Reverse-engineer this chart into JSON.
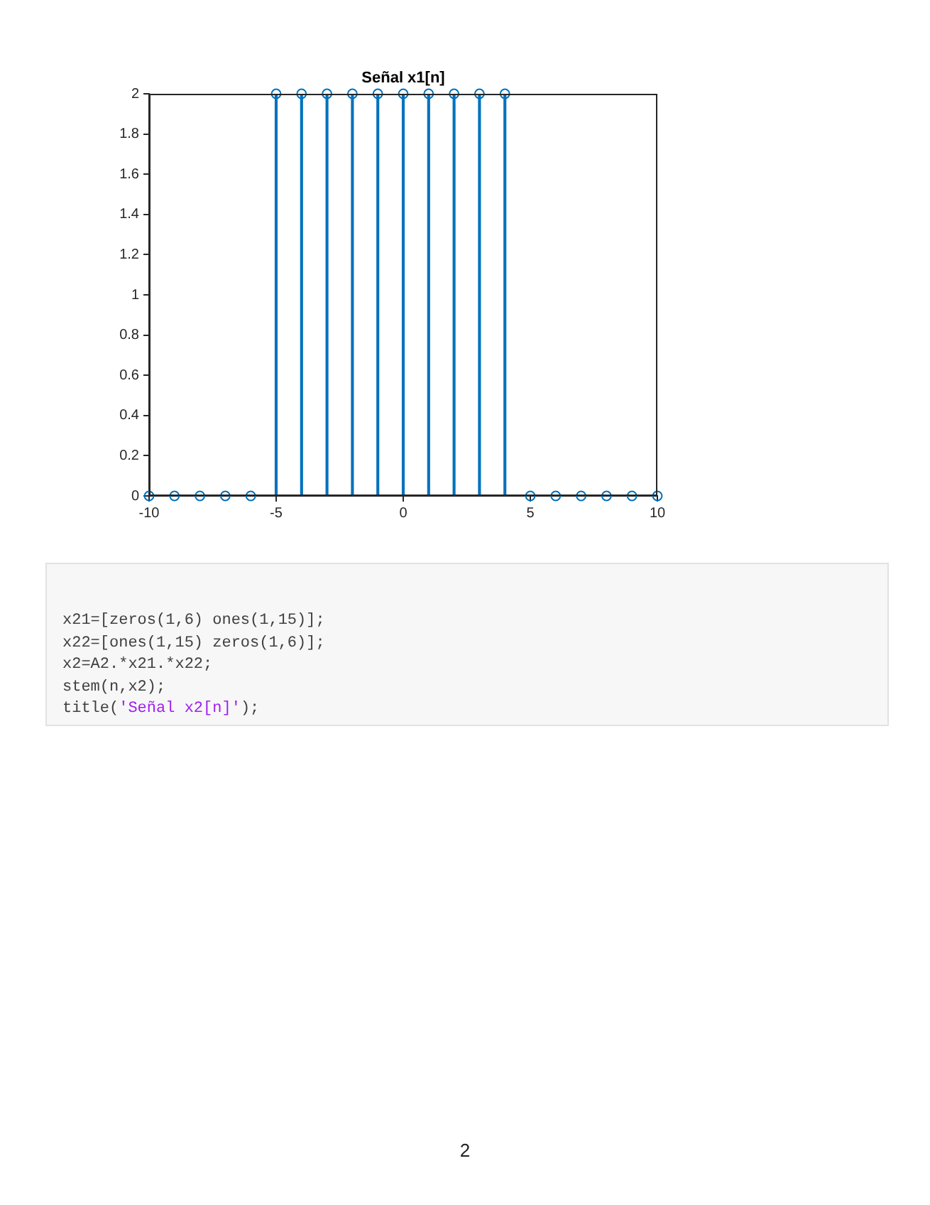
{
  "chart_data": {
    "type": "lollipop",
    "title": "Señal x1[n]",
    "x": [
      -10,
      -9,
      -8,
      -7,
      -6,
      -5,
      -4,
      -3,
      -2,
      -1,
      0,
      1,
      2,
      3,
      4,
      5,
      6,
      7,
      8,
      9,
      10
    ],
    "values": [
      0,
      0,
      0,
      0,
      0,
      2,
      2,
      2,
      2,
      2,
      2,
      2,
      2,
      2,
      2,
      0,
      0,
      0,
      0,
      0,
      0
    ],
    "color": "#0072bd",
    "marker": "circle",
    "xlim": [
      -10,
      10
    ],
    "xticks": [
      -10,
      -5,
      0,
      5,
      10
    ],
    "ylim": [
      0,
      2
    ],
    "yticks": [
      0,
      0.2,
      0.4,
      0.6,
      0.8,
      1,
      1.2,
      1.4,
      1.6,
      1.8,
      2
    ],
    "annotations": [
      "x21=[zeros(1,6) ones(1,15)];",
      "x22=[ones(1,15) zeros(1,6)];",
      "x2=A2.*x21.*x22;",
      "stem(n,x2);",
      "title('Señal x2[n]');",
      "2"
    ]
  }
}
